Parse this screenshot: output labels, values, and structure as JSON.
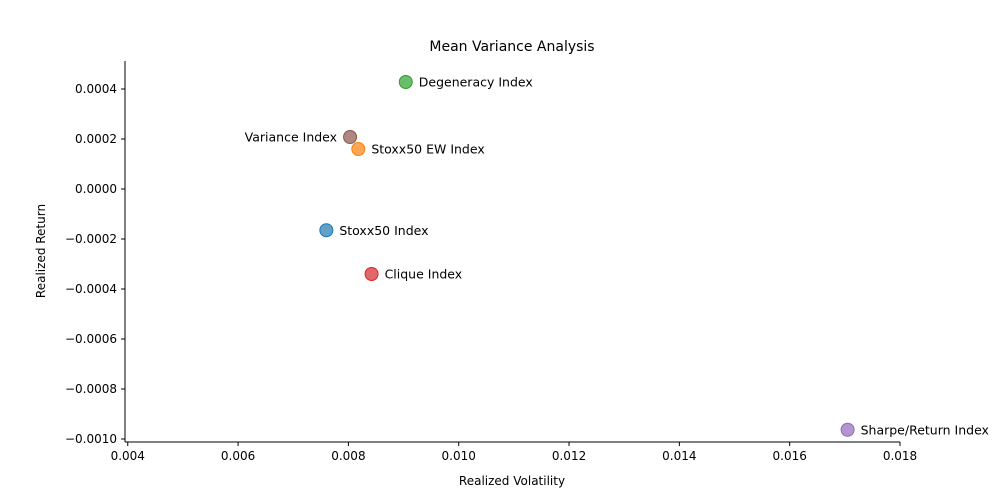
{
  "chart_data": {
    "type": "scatter",
    "title": "Mean Variance Analysis",
    "xlabel": "Realized Volatility",
    "ylabel": "Realized Return",
    "xlim": [
      0.00395,
      0.018
    ],
    "ylim": [
      -0.001012,
      0.000512
    ],
    "x_ticks": [
      "0.004",
      "0.006",
      "0.008",
      "0.010",
      "0.012",
      "0.014",
      "0.016",
      "0.018"
    ],
    "x_tick_values": [
      0.004,
      0.006,
      0.008,
      0.01,
      0.012,
      0.014,
      0.016,
      0.018
    ],
    "y_ticks": [
      "0.0004",
      "0.0002",
      "0.0000",
      "−0.0002",
      "−0.0004",
      "−0.0006",
      "−0.0008",
      "−0.0010"
    ],
    "y_tick_values": [
      0.0004,
      0.0002,
      0.0,
      -0.0002,
      -0.0004,
      -0.0006,
      -0.0008,
      -0.001
    ],
    "grid": false,
    "points": [
      {
        "label": "Stoxx50 Index",
        "x": 0.0076,
        "y": -0.000165,
        "color": "#1f77b4",
        "label_side": "right"
      },
      {
        "label": "Stoxx50 EW Index",
        "x": 0.00818,
        "y": 0.00016,
        "color": "#ff7f0e",
        "label_side": "right"
      },
      {
        "label": "Degeneracy Index",
        "x": 0.00904,
        "y": 0.000428,
        "color": "#2ca02c",
        "label_side": "right"
      },
      {
        "label": "Clique Index",
        "x": 0.00842,
        "y": -0.00034,
        "color": "#d62728",
        "label_side": "right"
      },
      {
        "label": "Sharpe/Return Index",
        "x": 0.01705,
        "y": -0.000963,
        "color": "#9467bd",
        "label_side": "right"
      },
      {
        "label": "Variance Index",
        "x": 0.00803,
        "y": 0.000208,
        "color": "#8c564b",
        "label_side": "left"
      }
    ]
  }
}
